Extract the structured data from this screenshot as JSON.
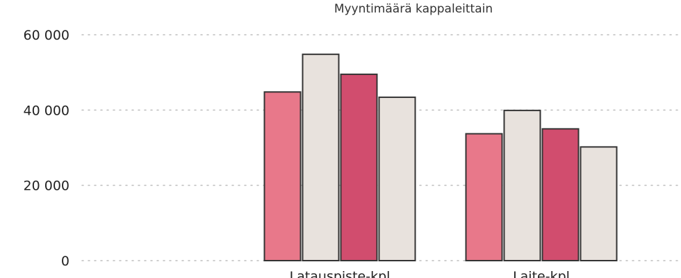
{
  "chart_data": {
    "type": "bar",
    "title": "Myyntimäärä kappaleittain",
    "xlabel": "",
    "ylabel": "",
    "categories": [
      "Latauspiste-kpl",
      "Laite-kpl"
    ],
    "series": [
      {
        "values": [
          44800,
          33700
        ],
        "color": "#e8788a"
      },
      {
        "values": [
          54800,
          39900
        ],
        "color": "#e8e2dd"
      },
      {
        "values": [
          49500,
          35000
        ],
        "color": "#d14d6e"
      },
      {
        "values": [
          43400,
          30200
        ],
        "color": "#e8e2dd"
      }
    ],
    "ylim": [
      0,
      60000
    ],
    "yticks": [
      0,
      20000,
      40000,
      60000
    ],
    "ytick_labels": [
      "0",
      "20 000",
      "40 000",
      "60 000"
    ],
    "grid": true,
    "grid_style": "dotted",
    "legend": "none"
  }
}
